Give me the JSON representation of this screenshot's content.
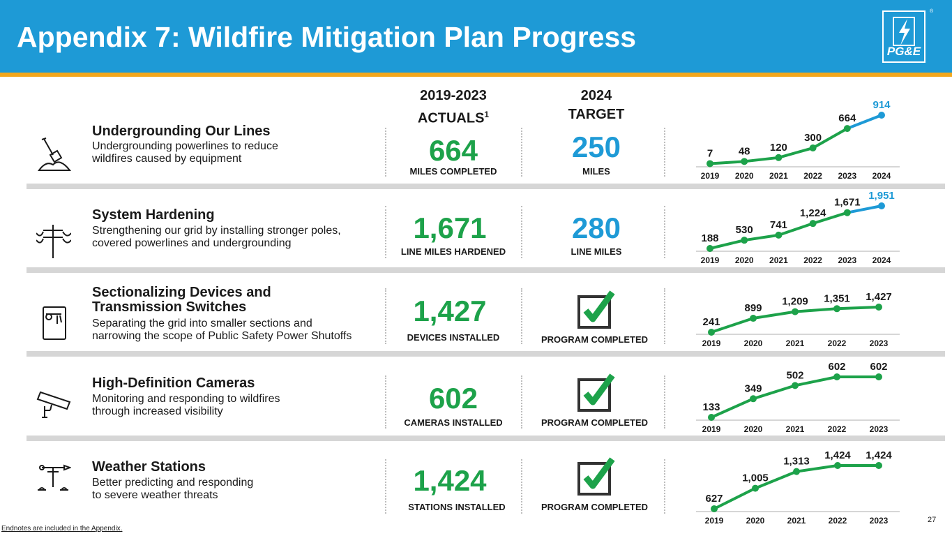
{
  "title": "Appendix 7: Wildfire Mitigation Plan Progress",
  "logo": "PG&E",
  "columns": {
    "actuals_line1": "2019-2023",
    "actuals_line2": "ACTUALS",
    "actuals_sup": "1",
    "target_line1": "2024",
    "target_line2": "TARGET"
  },
  "rows": [
    {
      "title": "Undergrounding Our Lines",
      "desc1": "Undergrounding powerlines to reduce",
      "desc2": "wildfires caused by equipment",
      "actual_value": "664",
      "actual_label": "MILES COMPLETED",
      "target_value": "250",
      "target_label": "MILES"
    },
    {
      "title": "System Hardening",
      "desc1": "Strengthening our grid by installing stronger poles,",
      "desc2": "covered powerlines and undergrounding",
      "actual_value": "1,671",
      "actual_label": "LINE MILES HARDENED",
      "target_value": "280",
      "target_label": "LINE MILES"
    },
    {
      "title1": "Sectionalizing Devices and",
      "title2": "Transmission Switches",
      "desc1": "Separating the grid into smaller sections and",
      "desc2": "narrowing the scope of Public Safety Power Shutoffs",
      "actual_value": "1,427",
      "actual_label": "DEVICES INSTALLED",
      "target_label": "PROGRAM COMPLETED"
    },
    {
      "title": "High-Definition Cameras",
      "desc1": "Monitoring and responding to wildfires",
      "desc2": "through increased visibility",
      "actual_value": "602",
      "actual_label": "CAMERAS INSTALLED",
      "target_label": "PROGRAM COMPLETED"
    },
    {
      "title": "Weather Stations",
      "desc1": "Better predicting and responding",
      "desc2": "to severe weather threats",
      "actual_value": "1,424",
      "actual_label": "STATIONS INSTALLED",
      "target_label": "PROGRAM COMPLETED"
    }
  ],
  "colors": {
    "green": "#1da24a",
    "blue": "#1e9ad6",
    "axis": "#d6d6d6"
  },
  "chart_data": [
    {
      "type": "line",
      "title": "Undergrounding Our Lines",
      "categories": [
        "2019",
        "2020",
        "2021",
        "2022",
        "2023",
        "2024"
      ],
      "values": [
        7,
        48,
        120,
        300,
        664,
        914
      ],
      "labels": [
        "7",
        "48",
        "120",
        "300",
        "664",
        "914"
      ],
      "target_from_index": 4,
      "ylim": [
        0,
        914
      ]
    },
    {
      "type": "line",
      "title": "System Hardening",
      "categories": [
        "2019",
        "2020",
        "2021",
        "2022",
        "2023",
        "2024"
      ],
      "values": [
        188,
        530,
        741,
        1224,
        1671,
        1951
      ],
      "labels": [
        "188",
        "530",
        "741",
        "1,224",
        "1,671",
        "1,951"
      ],
      "target_from_index": 4,
      "ylim": [
        188,
        1951
      ]
    },
    {
      "type": "line",
      "title": "Sectionalizing Devices and Transmission Switches",
      "categories": [
        "2019",
        "2020",
        "2021",
        "2022",
        "2023"
      ],
      "values": [
        241,
        899,
        1209,
        1351,
        1427
      ],
      "labels": [
        "241",
        "899",
        "1,209",
        "1,351",
        "1,427"
      ],
      "ylim": [
        241,
        1427
      ]
    },
    {
      "type": "line",
      "title": "High-Definition Cameras",
      "categories": [
        "2019",
        "2020",
        "2021",
        "2022",
        "2023"
      ],
      "values": [
        133,
        349,
        502,
        602,
        602
      ],
      "labels": [
        "133",
        "349",
        "502",
        "602",
        "602"
      ],
      "ylim": [
        133,
        602
      ]
    },
    {
      "type": "line",
      "title": "Weather Stations",
      "categories": [
        "2019",
        "2020",
        "2021",
        "2022",
        "2023"
      ],
      "values": [
        627,
        1005,
        1313,
        1424,
        1424
      ],
      "labels": [
        "627",
        "1,005",
        "1,313",
        "1,424",
        "1,424"
      ],
      "ylim": [
        627,
        1424
      ]
    }
  ],
  "footer_note": "Endnotes are included in the Appendix.",
  "page_number": "27"
}
